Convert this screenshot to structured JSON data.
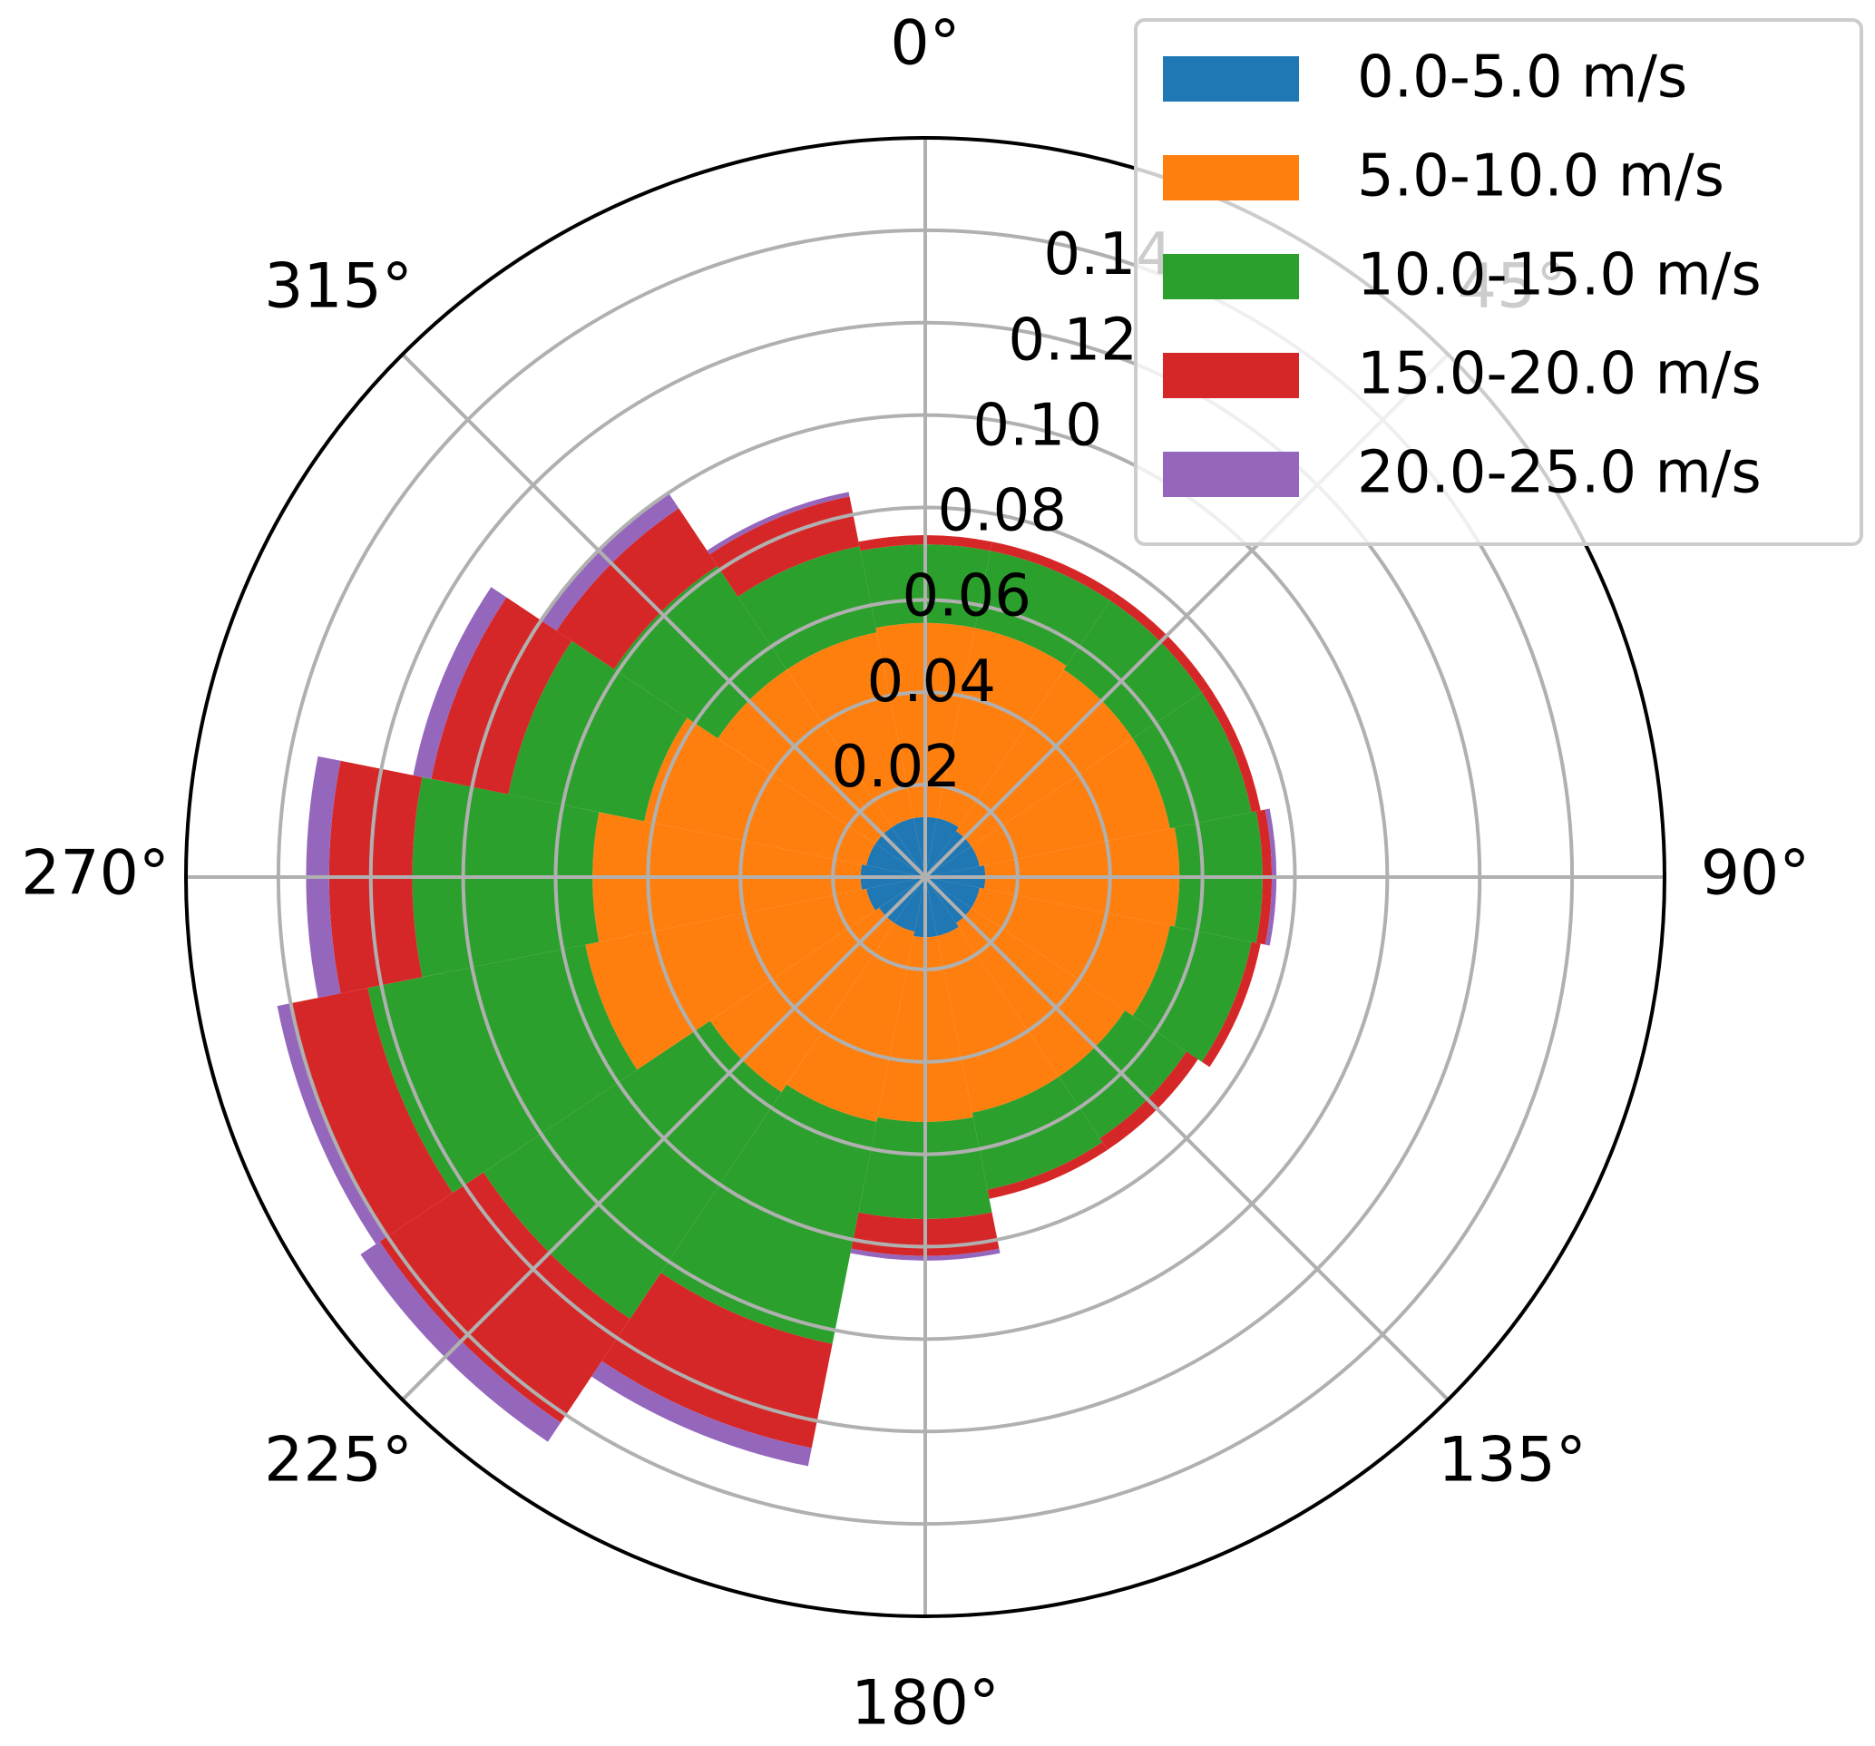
{
  "chart_data": {
    "type": "bar",
    "subtype": "polar-stacked-wind-rose",
    "title": "",
    "theta_direction": "clockwise",
    "theta_zero_location": "N",
    "sector_count": 16,
    "radial_range": [
      0,
      0.16
    ],
    "radial_ticks": [
      0.02,
      0.04,
      0.06,
      0.08,
      0.1,
      0.12,
      0.14
    ],
    "radial_tick_labels": [
      "0.02",
      "0.04",
      "0.06",
      "0.08",
      "0.10",
      "0.12",
      "0.14"
    ],
    "angular_ticks": [
      0,
      45,
      90,
      135,
      180,
      225,
      270,
      315
    ],
    "angular_tick_labels": [
      "0°",
      "45°",
      "90°",
      "135°",
      "180°",
      "225°",
      "270°",
      "315°"
    ],
    "grid": true,
    "legend_position": "top-right",
    "directions_deg": [
      0,
      22.5,
      45,
      67.5,
      90,
      112.5,
      135,
      157.5,
      180,
      202.5,
      225,
      247.5,
      270,
      292.5,
      315,
      337.5
    ],
    "series": [
      {
        "name": "0.0-5.0 m/s",
        "color": "#1f77b4",
        "values": [
          0.013,
          0.013,
          0.012,
          0.012,
          0.013,
          0.012,
          0.012,
          0.013,
          0.013,
          0.012,
          0.012,
          0.013,
          0.014,
          0.013,
          0.013,
          0.013
        ]
      },
      {
        "name": "5.0-10.0 m/s",
        "color": "#ff7f0e",
        "values": [
          0.042,
          0.042,
          0.042,
          0.042,
          0.042,
          0.042,
          0.04,
          0.039,
          0.04,
          0.042,
          0.044,
          0.062,
          0.058,
          0.049,
          0.041,
          0.041
        ]
      },
      {
        "name": "10.0-15.0 m/s",
        "color": "#2ca02c",
        "values": [
          0.017,
          0.017,
          0.018,
          0.018,
          0.018,
          0.018,
          0.016,
          0.017,
          0.021,
          0.049,
          0.059,
          0.048,
          0.039,
          0.03,
          0.027,
          0.019
        ]
      },
      {
        "name": "15.0-20.0 m/s",
        "color": "#d62728",
        "values": [
          0.002,
          0.002,
          0.002,
          0.002,
          0.002,
          0.002,
          0.003,
          0.002,
          0.008,
          0.023,
          0.027,
          0.017,
          0.018,
          0.017,
          0.015,
          0.011
        ]
      },
      {
        "name": "20.0-25.0 m/s",
        "color": "#9467bd",
        "values": [
          0.0,
          0.0,
          0.0,
          0.0,
          0.001,
          0.0,
          0.0,
          0.0,
          0.001,
          0.004,
          0.005,
          0.003,
          0.005,
          0.004,
          0.004,
          0.001
        ]
      }
    ]
  }
}
